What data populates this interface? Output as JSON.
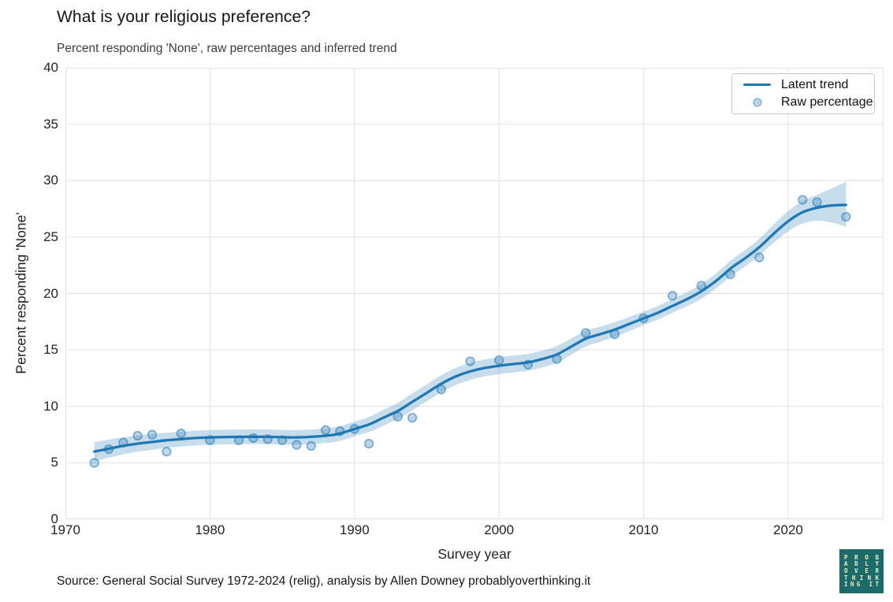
{
  "chart_data": {
    "type": "line",
    "title": "What is your religious preference?",
    "subtitle": "Percent responding 'None', raw percentages and inferred trend",
    "xlabel": "Survey year",
    "ylabel": "Percent responding 'None'",
    "source": "Source: General Social Survey 1972-2024 (relig), analysis by Allen Downey probablyoverthinking.it",
    "xlim": [
      1970,
      2026.6
    ],
    "ylim": [
      0,
      40
    ],
    "xticks": [
      1970,
      1980,
      1990,
      2000,
      2010,
      2020
    ],
    "yticks": [
      0,
      5,
      10,
      15,
      20,
      25,
      30,
      35,
      40
    ],
    "grid": true,
    "legend": {
      "position": "upper right",
      "entries": [
        {
          "label": "Latent trend",
          "type": "line"
        },
        {
          "label": "Raw percentage",
          "type": "marker"
        }
      ]
    },
    "colors": {
      "trend_line": "#1f77b4",
      "band": "rgba(31,119,180,0.25)",
      "marker_fill": "rgba(31,119,180,0.3)",
      "marker_edge": "rgba(31,119,180,0.55)",
      "grid": "#e2e2e2"
    },
    "series": [
      {
        "name": "Latent trend",
        "type": "line",
        "x": [
          1972,
          1973,
          1974,
          1975,
          1976,
          1977,
          1978,
          1979,
          1980,
          1982,
          1984,
          1986,
          1988,
          1989,
          1990,
          1991,
          1992,
          1993,
          1994,
          1995,
          1996,
          1997,
          1998,
          1999,
          2000,
          2001,
          2002,
          2003,
          2004,
          2005,
          2006,
          2007,
          2008,
          2009,
          2010,
          2011,
          2012,
          2013,
          2014,
          2015,
          2016,
          2017,
          2018,
          2019,
          2020,
          2021,
          2022,
          2023,
          2024
        ],
        "y": [
          6.0,
          6.25,
          6.5,
          6.7,
          6.85,
          7.0,
          7.1,
          7.2,
          7.25,
          7.3,
          7.3,
          7.25,
          7.4,
          7.6,
          8.0,
          8.4,
          9.0,
          9.6,
          10.4,
          11.2,
          12.0,
          12.65,
          13.1,
          13.4,
          13.6,
          13.75,
          13.9,
          14.2,
          14.6,
          15.3,
          16.0,
          16.4,
          16.8,
          17.3,
          17.8,
          18.3,
          18.9,
          19.5,
          20.2,
          21.1,
          22.2,
          23.1,
          24.1,
          25.3,
          26.4,
          27.2,
          27.6,
          27.8,
          27.85
        ],
        "band_upper": [
          6.85,
          7.05,
          7.25,
          7.42,
          7.55,
          7.67,
          7.75,
          7.85,
          7.9,
          7.95,
          7.95,
          7.9,
          8.05,
          8.25,
          8.65,
          9.07,
          9.7,
          10.32,
          11.15,
          11.95,
          12.75,
          13.4,
          13.85,
          14.15,
          14.35,
          14.5,
          14.65,
          14.95,
          15.35,
          16.02,
          16.7,
          17.07,
          17.45,
          17.92,
          18.4,
          18.9,
          19.5,
          20.12,
          20.85,
          21.77,
          22.9,
          23.82,
          24.85,
          26.1,
          27.3,
          28.2,
          28.75,
          29.3,
          29.9
        ],
        "band_lower": [
          5.15,
          5.45,
          5.75,
          5.98,
          6.15,
          6.33,
          6.45,
          6.55,
          6.6,
          6.65,
          6.65,
          6.6,
          6.75,
          6.95,
          7.35,
          7.73,
          8.3,
          8.88,
          9.65,
          10.45,
          11.25,
          11.9,
          12.35,
          12.65,
          12.85,
          13.0,
          13.15,
          13.45,
          13.85,
          14.58,
          15.3,
          15.73,
          16.15,
          16.68,
          17.2,
          17.7,
          18.3,
          18.88,
          19.55,
          20.43,
          21.5,
          22.38,
          23.35,
          24.5,
          25.5,
          26.2,
          26.45,
          26.3,
          25.9
        ]
      },
      {
        "name": "Raw percentage",
        "type": "scatter",
        "x": [
          1972,
          1973,
          1974,
          1975,
          1976,
          1977,
          1978,
          1980,
          1982,
          1983,
          1984,
          1985,
          1986,
          1987,
          1988,
          1989,
          1990,
          1991,
          1993,
          1994,
          1996,
          1998,
          2000,
          2002,
          2004,
          2006,
          2008,
          2010,
          2012,
          2014,
          2016,
          2018,
          2021,
          2022,
          2024
        ],
        "y": [
          5.0,
          6.2,
          6.8,
          7.4,
          7.5,
          6.0,
          7.6,
          7.0,
          7.0,
          7.2,
          7.1,
          7.0,
          6.6,
          6.5,
          7.9,
          7.8,
          8.0,
          6.7,
          9.1,
          9.0,
          11.5,
          14.0,
          14.1,
          13.7,
          14.2,
          16.5,
          16.4,
          17.8,
          19.8,
          20.7,
          21.7,
          23.2,
          28.3,
          28.1,
          26.8
        ]
      }
    ]
  },
  "logo": {
    "lines": [
      "PROB",
      "ABLY",
      "OVER",
      "THINK",
      "ING IT"
    ],
    "bg_color": "#1b6b6b",
    "text_color": "#f2ecc8"
  }
}
